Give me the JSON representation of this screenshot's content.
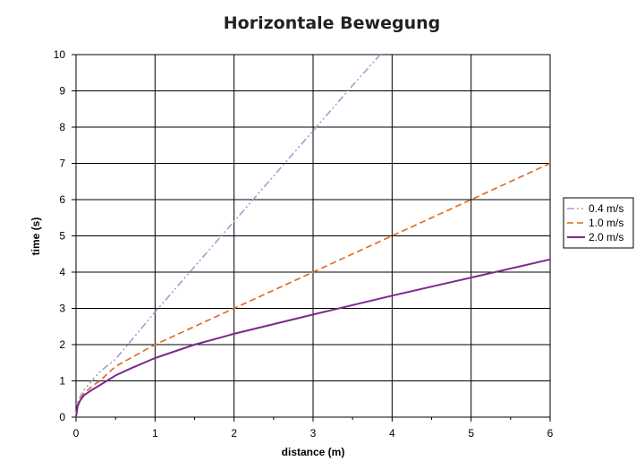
{
  "chart_data": {
    "type": "line",
    "title": "Horizontale Bewegung",
    "xlabel": "distance (m)",
    "ylabel": "time (s)",
    "xlim": [
      0,
      6
    ],
    "ylim": [
      0,
      10
    ],
    "xticks": [
      "0",
      "1",
      "2",
      "3",
      "4",
      "5",
      "6"
    ],
    "yticks": [
      "0",
      "1",
      "2",
      "3",
      "4",
      "5",
      "6",
      "7",
      "8",
      "9",
      "10"
    ],
    "grid": true,
    "legend_position": "right",
    "series": [
      {
        "name": "0.4 m/s",
        "color": "#a99bd0",
        "dash": "dash-dot-dot",
        "points": [
          [
            0,
            0
          ],
          [
            0.02,
            0.4
          ],
          [
            0.05,
            0.55
          ],
          [
            0.1,
            0.75
          ],
          [
            0.2,
            1.0
          ],
          [
            0.3,
            1.25
          ],
          [
            0.5,
            1.6
          ],
          [
            1.0,
            2.9
          ],
          [
            1.5,
            4.15
          ],
          [
            2.0,
            5.4
          ],
          [
            2.5,
            6.65
          ],
          [
            3.0,
            7.9
          ],
          [
            3.5,
            9.15
          ],
          [
            3.85,
            10.0
          ]
        ]
      },
      {
        "name": "1.0 m/s",
        "color": "#e0651e",
        "dash": "dash",
        "points": [
          [
            0,
            0
          ],
          [
            0.02,
            0.35
          ],
          [
            0.05,
            0.5
          ],
          [
            0.1,
            0.65
          ],
          [
            0.2,
            0.85
          ],
          [
            0.3,
            1.0
          ],
          [
            0.5,
            1.4
          ],
          [
            1.0,
            2.0
          ],
          [
            2.0,
            3.0
          ],
          [
            3.0,
            4.0
          ],
          [
            4.0,
            5.0
          ],
          [
            5.0,
            6.0
          ],
          [
            6.0,
            7.0
          ]
        ]
      },
      {
        "name": "2.0 m/s",
        "color": "#7b2a8a",
        "dash": "solid",
        "points": [
          [
            0,
            0
          ],
          [
            0.02,
            0.3
          ],
          [
            0.05,
            0.45
          ],
          [
            0.1,
            0.6
          ],
          [
            0.2,
            0.75
          ],
          [
            0.3,
            0.88
          ],
          [
            0.5,
            1.15
          ],
          [
            0.7,
            1.35
          ],
          [
            1.0,
            1.63
          ],
          [
            1.5,
            2.0
          ],
          [
            2.0,
            2.3
          ],
          [
            3.0,
            2.83
          ],
          [
            4.0,
            3.35
          ],
          [
            5.0,
            3.85
          ],
          [
            6.0,
            4.35
          ]
        ]
      }
    ]
  }
}
